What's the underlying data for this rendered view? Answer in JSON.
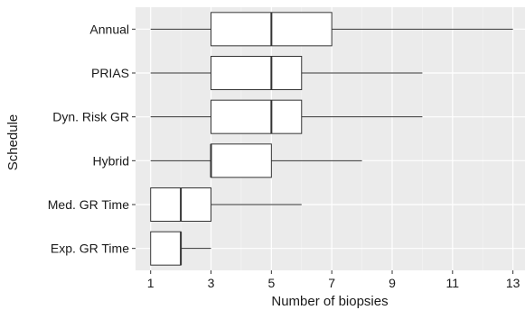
{
  "chart_data": {
    "type": "box",
    "title": "",
    "xlabel": "Number of biopsies",
    "ylabel": "Schedule",
    "xlim": [
      0.5,
      13.4
    ],
    "xticks": [
      1,
      3,
      5,
      7,
      9,
      11,
      13
    ],
    "xtick_labels": [
      "1",
      "3",
      "5",
      "7",
      "9",
      "11",
      "13"
    ],
    "grid": true,
    "orientation": "horizontal",
    "categories": [
      "Annual",
      "PRIAS",
      "Dyn. Risk GR",
      "Hybrid",
      "Med. GR Time",
      "Exp. GR Time"
    ],
    "boxes": [
      {
        "label": "Annual",
        "min": 1,
        "q1": 3,
        "median": 5,
        "q3": 7,
        "max": 13
      },
      {
        "label": "PRIAS",
        "min": 1,
        "q1": 3,
        "median": 5,
        "q3": 6,
        "max": 10
      },
      {
        "label": "Dyn. Risk GR",
        "min": 1,
        "q1": 3,
        "median": 5,
        "q3": 6,
        "max": 10
      },
      {
        "label": "Hybrid",
        "min": 1,
        "q1": 3,
        "median": 3,
        "q3": 5,
        "max": 8
      },
      {
        "label": "Med. GR Time",
        "min": 1,
        "q1": 1,
        "median": 2,
        "q3": 3,
        "max": 6
      },
      {
        "label": "Exp. GR Time",
        "min": 1,
        "q1": 1,
        "median": 2,
        "q3": 2,
        "max": 3
      }
    ],
    "colors": {
      "panel": "#ebebeb",
      "grid_major": "#ffffff",
      "grid_minor": "#f5f5f5",
      "box_fill": "#ffffff",
      "box_stroke": "#333333",
      "text": "#1a1a1a"
    }
  }
}
